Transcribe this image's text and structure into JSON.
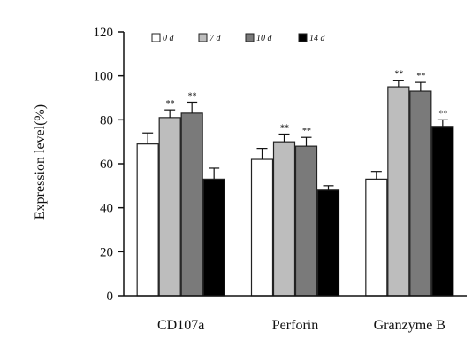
{
  "chart_data": {
    "type": "bar",
    "title": "",
    "xlabel": "",
    "ylabel": "Expression level(%)",
    "ylim": [
      0,
      120
    ],
    "yticks": [
      0,
      20,
      40,
      60,
      80,
      100,
      120
    ],
    "grid": false,
    "legend_position": "top",
    "categories": [
      "CD107a",
      "Perforin",
      "Granzyme B"
    ],
    "series": [
      {
        "name": "0 d",
        "color": "#ffffff",
        "values": [
          69,
          62,
          53
        ],
        "errors": [
          5,
          5,
          3.5
        ],
        "significance": [
          "",
          "",
          ""
        ]
      },
      {
        "name": "7 d",
        "color": "#bdbdbd",
        "values": [
          81,
          70,
          95
        ],
        "errors": [
          3.5,
          3.5,
          3
        ],
        "significance": [
          "**",
          "**",
          "**"
        ]
      },
      {
        "name": "10 d",
        "color": "#7a7a7a",
        "values": [
          83,
          68,
          93
        ],
        "errors": [
          5,
          4,
          4
        ],
        "significance": [
          "**",
          "**",
          "**"
        ]
      },
      {
        "name": "14 d",
        "color": "#000000",
        "values": [
          53,
          48,
          77
        ],
        "errors": [
          5,
          2,
          3
        ],
        "significance": [
          "",
          "",
          "**"
        ]
      }
    ]
  }
}
